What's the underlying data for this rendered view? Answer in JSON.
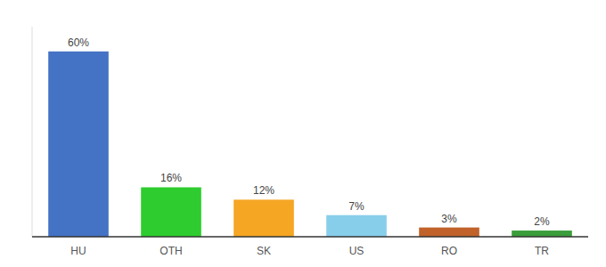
{
  "chart_data": {
    "type": "bar",
    "categories": [
      "HU",
      "OTH",
      "SK",
      "US",
      "RO",
      "TR"
    ],
    "values": [
      60,
      16,
      12,
      7,
      3,
      2
    ],
    "value_labels": [
      "60%",
      "16%",
      "12%",
      "7%",
      "3%",
      "2%"
    ],
    "colors": [
      "#4472c4",
      "#2ecc2e",
      "#f5a623",
      "#87ceeb",
      "#c0622a",
      "#3a9e3a"
    ],
    "ylim": [
      0,
      68
    ],
    "data_labels": true,
    "tick_labels": "x"
  }
}
